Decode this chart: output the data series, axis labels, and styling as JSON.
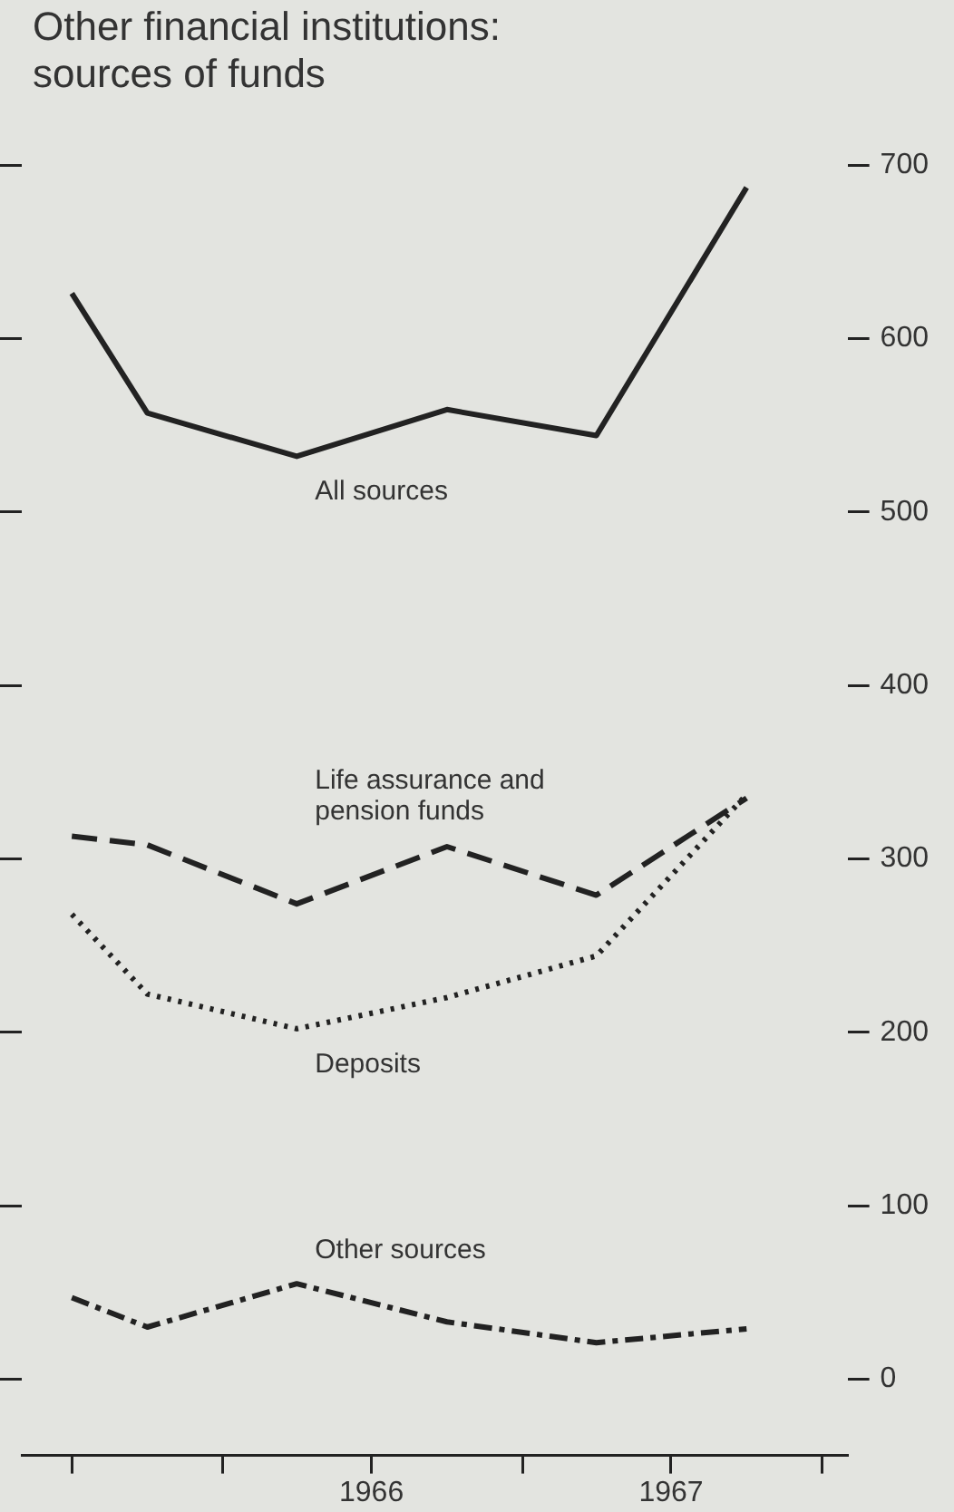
{
  "chart_data": {
    "type": "line",
    "title": "Other financial institutions: sources of funds",
    "x": [
      "1965-07",
      "1965-10",
      "1966-04",
      "1966-10",
      "1967-04",
      "1967-10"
    ],
    "series": [
      {
        "name": "All sources",
        "color": "#222222",
        "line_style": "solid",
        "values": [
          626,
          557,
          532,
          559,
          544,
          687
        ]
      },
      {
        "name": "Life assurance and pension funds",
        "color": "#222222",
        "line_style": "dashed",
        "values": [
          313,
          308,
          274,
          307,
          279,
          335
        ]
      },
      {
        "name": "Deposits",
        "color": "#222222",
        "line_style": "dotted",
        "values": [
          268,
          222,
          202,
          220,
          244,
          337
        ]
      },
      {
        "name": "Other sources",
        "color": "#222222",
        "line_style": "dashdot",
        "values": [
          47,
          30,
          55,
          33,
          21,
          29
        ]
      }
    ],
    "xlim": [
      "1965-05",
      "1968-02"
    ],
    "xticks": [
      {
        "value": "1965-07",
        "label": null
      },
      {
        "value": "1966-01",
        "label": null
      },
      {
        "value": "1966-07",
        "label": "1966"
      },
      {
        "value": "1967-01",
        "label": null
      },
      {
        "value": "1967-07",
        "label": "1967"
      },
      {
        "value": "1968-01",
        "label": null
      }
    ],
    "ylim": [
      -44,
      700
    ],
    "yticks": [
      0,
      100,
      200,
      300,
      400,
      500,
      600,
      700
    ],
    "marker": "none",
    "grid": false,
    "legend": false
  }
}
